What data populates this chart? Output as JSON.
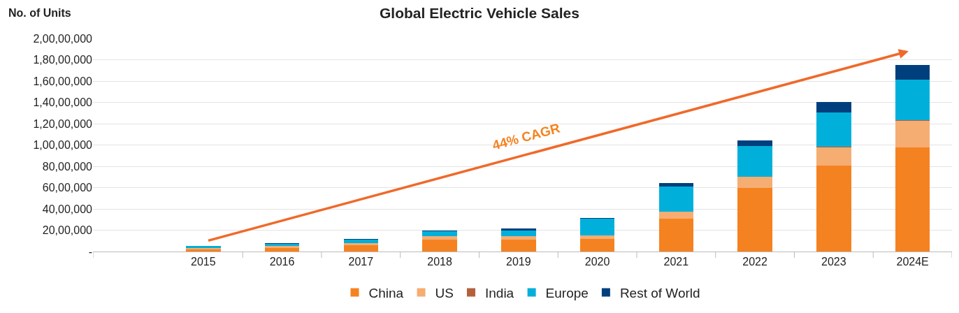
{
  "chart_data": {
    "type": "bar",
    "title": "Global Electric Vehicle Sales",
    "ylabel": "No. of Units",
    "categories": [
      "2015",
      "2016",
      "2017",
      "2018",
      "2019",
      "2020",
      "2021",
      "2022",
      "2023",
      "2024E"
    ],
    "stacked": true,
    "series": [
      {
        "name": "China",
        "color": "#f58220",
        "values": [
          200000,
          340000,
          580000,
          1140000,
          1100000,
          1150000,
          3060000,
          5990000,
          8080000,
          9740000
        ]
      },
      {
        "name": "US",
        "color": "#f5ad72",
        "values": [
          110000,
          160000,
          200000,
          320000,
          320000,
          350000,
          700000,
          1010000,
          1700000,
          2520000
        ]
      },
      {
        "name": "India",
        "color": "#b5603c",
        "values": [
          0,
          0,
          0,
          0,
          0,
          0,
          0,
          30000,
          50000,
          60000
        ]
      },
      {
        "name": "Europe",
        "color": "#00b0da",
        "values": [
          190000,
          220000,
          310000,
          470000,
          540000,
          1560000,
          2360000,
          2850000,
          3220000,
          3810000
        ]
      },
      {
        "name": "Rest of World",
        "color": "#003f7d",
        "values": [
          50000,
          100000,
          110000,
          70000,
          210000,
          110000,
          320000,
          560000,
          990000,
          1350000
        ]
      }
    ],
    "ylim": [
      0,
      20000000
    ],
    "yticks": [
      {
        "value": 0,
        "label": "-"
      },
      {
        "value": 2000000,
        "label": "20,00,000"
      },
      {
        "value": 4000000,
        "label": "40,00,000"
      },
      {
        "value": 6000000,
        "label": "60,00,000"
      },
      {
        "value": 8000000,
        "label": "80,00,000"
      },
      {
        "value": 10000000,
        "label": "1,00,00,000"
      },
      {
        "value": 12000000,
        "label": "1,20,00,000"
      },
      {
        "value": 14000000,
        "label": "1,40,00,000"
      },
      {
        "value": 16000000,
        "label": "1,60,00,000"
      },
      {
        "value": 18000000,
        "label": "1,80,00,000"
      },
      {
        "value": 20000000,
        "label": "2,00,00,000"
      }
    ],
    "grid": "y",
    "legend": "bottom",
    "annotations": [
      "44% CAGR"
    ]
  }
}
